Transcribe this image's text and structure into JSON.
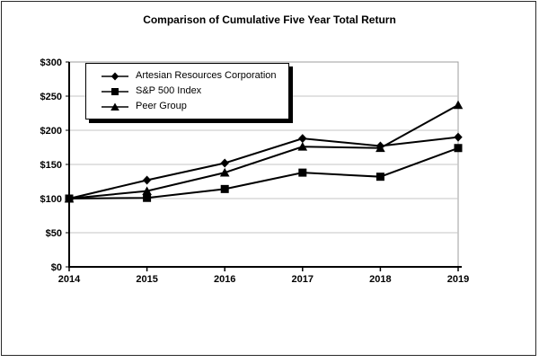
{
  "chart_data": {
    "type": "line",
    "title": "Comparison of Cumulative Five Year Total Return",
    "x_tick_labels": [
      "2014",
      "2015",
      "2016",
      "2017",
      "2018",
      "2019"
    ],
    "y_tick_labels": [
      "$0",
      "$50",
      "$100",
      "$150",
      "$200",
      "$250",
      "$300"
    ],
    "ylim": [
      0,
      300
    ],
    "y_tick_step": 50,
    "grid": true,
    "legend_position": "top-left-inside",
    "series": [
      {
        "name": "Artesian Resources Corporation",
        "marker": "diamond",
        "values": [
          100,
          127,
          152,
          188,
          177,
          190
        ]
      },
      {
        "name": "S&P 500 Index",
        "marker": "square",
        "values": [
          100,
          101,
          114,
          138,
          132,
          174
        ]
      },
      {
        "name": "Peer Group",
        "marker": "triangle",
        "values": [
          100,
          111,
          138,
          176,
          174,
          237
        ]
      }
    ],
    "colors": {
      "series": "#000000",
      "gridline": "#c6c6c6",
      "plot_border": "#9c9c9c",
      "axis": "#000000",
      "background": "#ffffff"
    }
  }
}
